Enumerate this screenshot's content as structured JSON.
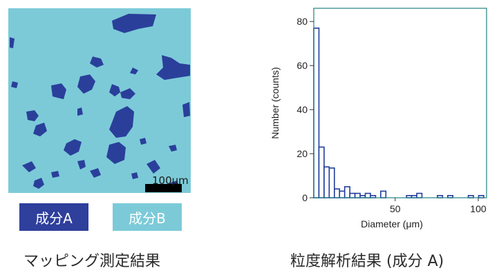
{
  "mapping": {
    "scale_label": "100μm",
    "legend": [
      {
        "label": "成分A",
        "color": "#2e3f9c"
      },
      {
        "label": "成分B",
        "color": "#7ccad8"
      }
    ],
    "background_color": "#7ccad8",
    "particle_color": "#2a3f9a",
    "scale_bar_color": "#000000"
  },
  "captions": {
    "left": "マッピング測定結果",
    "right": "粒度解析結果 (成分 A)"
  },
  "chart_data": {
    "type": "bar",
    "subtype": "histogram",
    "xlabel": "Diameter (μm)",
    "ylabel": "Number (counts)",
    "xlim": [
      1,
      105
    ],
    "ylim": [
      0,
      86
    ],
    "x_ticks": [
      50,
      100
    ],
    "y_ticks": [
      0,
      20,
      40,
      60,
      80
    ],
    "bin_width": 3.1,
    "bin_starts": [
      1,
      4.1,
      7.2,
      10.3,
      13.4,
      16.5,
      19.6,
      22.7,
      25.8,
      28.9,
      32,
      35.1,
      38.2,
      41.3,
      44.4,
      47.5,
      50.6,
      53.7,
      56.8,
      59.9,
      63,
      66.1,
      69.2,
      72.3,
      75.4,
      78.5,
      81.6,
      84.7,
      87.8,
      90.9,
      94,
      97.1,
      100.2
    ],
    "values": [
      77,
      23,
      14,
      13.5,
      4,
      3,
      5,
      2,
      2,
      1,
      2,
      1,
      0,
      3,
      0,
      0,
      0,
      0,
      1,
      1,
      2,
      0,
      0,
      0,
      1,
      0,
      1,
      0,
      0,
      0,
      1,
      0,
      1
    ],
    "bar_color": "#1f3d9c",
    "frame_color": "#2f8a8a",
    "grid": false
  }
}
